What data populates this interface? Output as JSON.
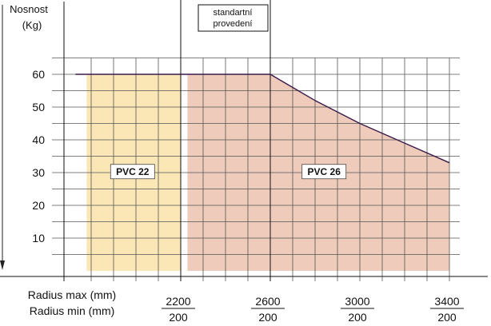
{
  "chart_data": {
    "type": "area",
    "ylabel_line1": "Nosnost",
    "ylabel_line2": "(Kg)",
    "xlabel_line1": "Radius max (mm)",
    "xlabel_line2": "Radius min (mm)",
    "y_ticks": [
      10,
      20,
      30,
      40,
      50,
      60
    ],
    "ylim": [
      0,
      70
    ],
    "xlim": [
      1700,
      3500
    ],
    "x_ticks": [
      {
        "max": 2200,
        "min": 200,
        "label_max": "2200",
        "label_min": "200"
      },
      {
        "max": 2600,
        "min": 200,
        "label_max": "2600",
        "label_min": "200"
      },
      {
        "max": 3000,
        "min": 200,
        "label_max": "3000",
        "label_min": "200"
      },
      {
        "max": 3400,
        "min": 200,
        "label_max": "3400",
        "label_min": "200"
      }
    ],
    "series": [
      {
        "name": "PVC 22",
        "color": "#fbe6b6",
        "x_range": [
          1780,
          2200
        ],
        "points": [
          [
            1730,
            60
          ],
          [
            2600,
            60
          ]
        ]
      },
      {
        "name": "PVC 26",
        "color": "#efcbbb",
        "x_range": [
          2230,
          3400
        ],
        "points": [
          [
            2600,
            60
          ],
          [
            2800,
            52
          ],
          [
            3000,
            45
          ],
          [
            3200,
            39
          ],
          [
            3400,
            33
          ]
        ]
      }
    ],
    "annotation": "standartní provedení",
    "grid": true,
    "colors": {
      "pvc22_fill": "#fbe6b6",
      "pvc26_fill": "#efcbbb",
      "limit_line": "#3a1a4a"
    }
  }
}
